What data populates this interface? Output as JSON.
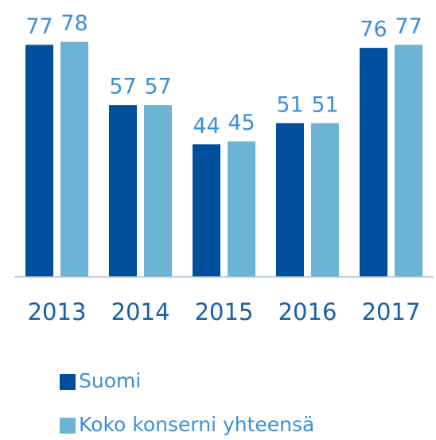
{
  "chart_data": {
    "type": "bar",
    "categories": [
      "2013",
      "2014",
      "2015",
      "2016",
      "2017"
    ],
    "series": [
      {
        "name": "Suomi",
        "color": "#004f9c",
        "values": [
          77,
          57,
          44,
          51,
          76
        ]
      },
      {
        "name": "Koko konserni yhteensä",
        "color": "#6bb4d3",
        "values": [
          78,
          57,
          45,
          51,
          77
        ]
      }
    ],
    "ylim": [
      0,
      80
    ]
  }
}
